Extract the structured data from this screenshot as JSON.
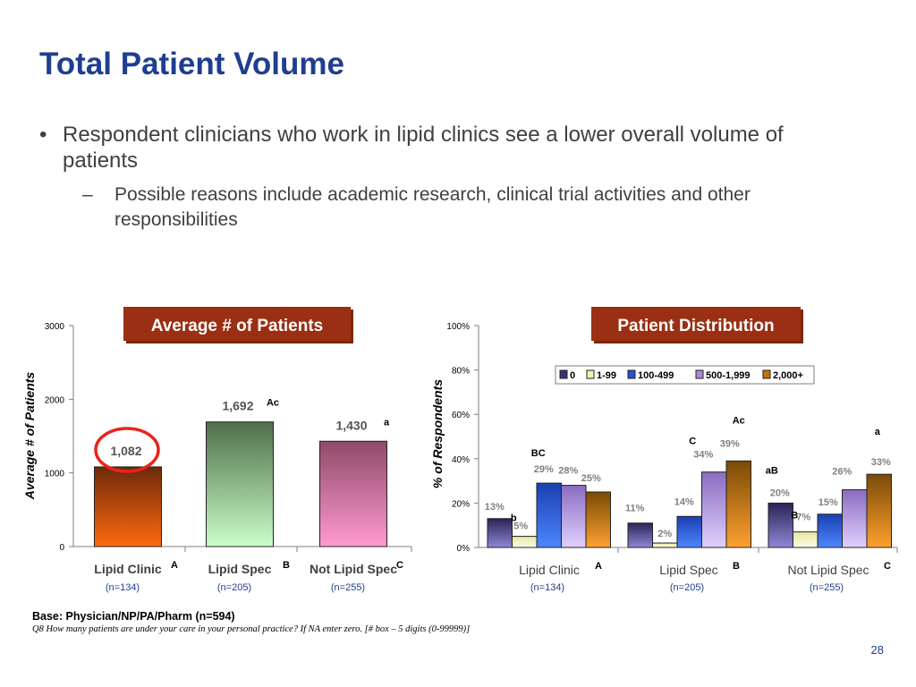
{
  "slide": {
    "title": "Total Patient Volume",
    "bullet1": "Respondent clinicians who work in lipid clinics see a lower overall volume of patients",
    "bullet2": "Possible reasons include academic research, clinical trial activities and other responsibilities",
    "bullet_glyph": "•",
    "sub_glyph": "–",
    "base": "Base: Physician/NP/PA/Pharm (n=594)",
    "question": "Q8    How many patients are under your care in your personal practice? If NA enter zero.  [# box – 5 digits (0-99999)]",
    "page_number": "28"
  },
  "colors": {
    "title": "#1f3e8f",
    "header_box": "#9a2f14",
    "n_label": "#1f3e8f"
  },
  "chart_data": [
    {
      "type": "bar",
      "title": "Average # of Patients",
      "ylabel": "Average # of Patients",
      "ylim": [
        0,
        3000
      ],
      "yticks": [
        "0",
        "1000",
        "2000",
        "3000"
      ],
      "categories": [
        "Lipid Clinic",
        "Lipid Spec",
        "Not Lipid Spec"
      ],
      "category_letters": [
        "A",
        "B",
        "C"
      ],
      "sample_sizes": [
        "(n=134)",
        "(n=205)",
        "(n=255)"
      ],
      "values": [
        1082,
        1692,
        1430
      ],
      "value_labels": [
        "1,082",
        "1,692",
        "1,430"
      ],
      "sig_labels": [
        "",
        "Ac",
        "a"
      ],
      "highlighted_category": "Lipid Clinic",
      "bar_colors": [
        [
          "#6e2a0a",
          "#ff6a10"
        ],
        [
          "#4e6e4a",
          "#caffc8"
        ],
        [
          "#8e4a68",
          "#ff9ad0"
        ]
      ]
    },
    {
      "type": "bar",
      "title": "Patient Distribution",
      "ylabel": "% of Respondents",
      "ylim": [
        0,
        100
      ],
      "yticks": [
        "0%",
        "20%",
        "40%",
        "60%",
        "80%",
        "100%"
      ],
      "categories": [
        "Lipid Clinic",
        "Lipid Spec",
        "Not Lipid Spec"
      ],
      "category_letters": [
        "A",
        "B",
        "C"
      ],
      "sample_sizes": [
        "(n=134)",
        "(n=205)",
        "(n=255)"
      ],
      "legend_position": "top-right",
      "series": [
        {
          "name": "0",
          "color": "#3a3275",
          "values": [
            13,
            11,
            20
          ],
          "sig": [
            "",
            "",
            "aB"
          ]
        },
        {
          "name": "1-99",
          "color": "#f2f2b0",
          "values": [
            5,
            2,
            7
          ],
          "sig": [
            "b",
            "",
            "B"
          ]
        },
        {
          "name": "100-499",
          "color": "#2452d8",
          "values": [
            29,
            14,
            15
          ],
          "sig": [
            "BC",
            "",
            ""
          ]
        },
        {
          "name": "500-1,999",
          "color": "#a88ad8",
          "values": [
            28,
            34,
            26
          ],
          "sig": [
            "",
            "C",
            ""
          ]
        },
        {
          "name": "2,000+",
          "color": "#c0740a",
          "values": [
            25,
            39,
            33
          ],
          "sig": [
            "",
            "Ac",
            "a"
          ]
        }
      ]
    }
  ]
}
